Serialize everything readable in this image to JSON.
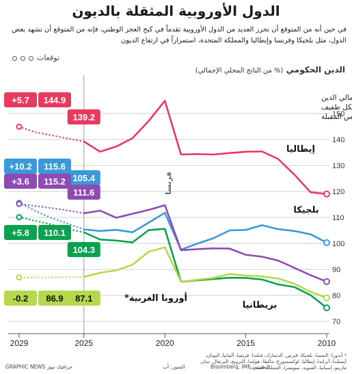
{
  "title": "الدول الأوروبية المثقلة بالديون",
  "intro": "في حين أنه من المتوقع أن تحرز العديد من الدول الأوروبية تقدماً في كبح العجز الوطني، فإنه من المتوقع أن تشهد بعض الدول، مثل بلجيكا وفرنسا وإيطاليا والمملكة المتحدة، استمراراً في ارتفاع الديون",
  "forecast_label": "توقعات",
  "chart_title": "الدين الحكومي",
  "chart_subtitle": "(% من الناتج المحلي الإجمالي)",
  "note": [
    "من المتوقع أن ينخفض إجمالي الدين",
    "في أوروبا الغربية بشكل طفيف",
    "خلال السنوات الخمس المقبلة"
  ],
  "footer": {
    "brand": "GRAPHIC NEWS جرافيك نيوز",
    "credit": "الصور: أب",
    "source": "المصدر: Bloomberg, IMF",
    "footnote": "* أندورا، النمسا، بلجيكا، قبرص، الدنمارك، فنلندا، فرنسا، ألمانيا، اليونان، أيسلندا، أيرلندا، إيطاليا، لوكسمبورغ، مالطا، هولندا، النرويج، البرتغال، سان مارينو، إسبانيا، السويد، سويسرا، المملكة المتحدة"
  },
  "chart_data": {
    "type": "line",
    "x_axis": {
      "min": 2010,
      "max": 2029,
      "reversed": true,
      "ticks": [
        "2010",
        "2015",
        "2020",
        "2025",
        "2029"
      ]
    },
    "y_axis": {
      "min": 70,
      "max": 160,
      "ticks": [
        "70",
        "80",
        "90",
        "100",
        "110",
        "120",
        "130",
        "140",
        "150"
      ]
    },
    "forecast_from": 2025,
    "series": [
      {
        "name": "إيطاليا",
        "color": "#e8395f",
        "label_style": "plain",
        "actual": [
          [
            2010,
            119
          ],
          [
            2011,
            119.7
          ],
          [
            2012,
            126.5
          ],
          [
            2013,
            132.5
          ],
          [
            2014,
            135.4
          ],
          [
            2015,
            135.3
          ],
          [
            2016,
            134.8
          ],
          [
            2017,
            134.2
          ],
          [
            2018,
            134.4
          ],
          [
            2019,
            134.2
          ],
          [
            2020,
            154.9
          ],
          [
            2021,
            147.1
          ],
          [
            2022,
            140.5
          ],
          [
            2023,
            137.3
          ],
          [
            2024,
            135.3
          ],
          [
            2025,
            139.2
          ]
        ],
        "forecast": [
          [
            2025,
            139.2
          ],
          [
            2026,
            140.4
          ],
          [
            2027,
            141.6
          ],
          [
            2028,
            142.8
          ],
          [
            2029,
            144.9
          ]
        ],
        "box_2025": "139.2",
        "box_2029": "144.9",
        "change_2029": "+5.7"
      },
      {
        "name": "بلجيكا",
        "color": "#3a9ad9",
        "label_style": "plain",
        "actual": [
          [
            2010,
            100.3
          ],
          [
            2011,
            103.5
          ],
          [
            2012,
            104.8
          ],
          [
            2013,
            105.5
          ],
          [
            2014,
            107
          ],
          [
            2015,
            105.2
          ],
          [
            2016,
            105
          ],
          [
            2017,
            102
          ],
          [
            2018,
            99.9
          ],
          [
            2019,
            97.6
          ],
          [
            2020,
            111.8
          ],
          [
            2021,
            108
          ],
          [
            2022,
            104.3
          ],
          [
            2023,
            105.2
          ],
          [
            2024,
            104.8
          ],
          [
            2025,
            105.4
          ]
        ],
        "forecast": [
          [
            2025,
            105.4
          ],
          [
            2026,
            107.6
          ],
          [
            2027,
            109.8
          ],
          [
            2028,
            112.5
          ],
          [
            2029,
            115.6
          ]
        ],
        "box_2025": "105.4",
        "box_2029": "115.6",
        "change_2029": "+10.2"
      },
      {
        "name": "فرنسا",
        "color": "#8e4bb4",
        "label_style": "plain",
        "actual": [
          [
            2010,
            85.3
          ],
          [
            2011,
            87.8
          ],
          [
            2012,
            90.6
          ],
          [
            2013,
            93.4
          ],
          [
            2014,
            94.9
          ],
          [
            2015,
            95.6
          ],
          [
            2016,
            98
          ],
          [
            2017,
            98.1
          ],
          [
            2018,
            97.8
          ],
          [
            2019,
            97.4
          ],
          [
            2020,
            114.7
          ],
          [
            2021,
            112.9
          ],
          [
            2022,
            111.4
          ],
          [
            2023,
            109.9
          ],
          [
            2024,
            112.6
          ],
          [
            2025,
            111.6
          ]
        ],
        "forecast": [
          [
            2025,
            111.6
          ],
          [
            2026,
            112.7
          ],
          [
            2027,
            113.6
          ],
          [
            2028,
            114.4
          ],
          [
            2029,
            115.2
          ]
        ],
        "box_2025": "111.6",
        "box_2029": "115.2",
        "change_2029": "+3.6"
      },
      {
        "name": "بريطانيا",
        "color": "#0aa14f",
        "label_style": "plain",
        "actual": [
          [
            2010,
            75.2
          ],
          [
            2011,
            80.1
          ],
          [
            2012,
            83.2
          ],
          [
            2013,
            84.2
          ],
          [
            2014,
            86.1
          ],
          [
            2015,
            86.7
          ],
          [
            2016,
            86.8
          ],
          [
            2017,
            86.3
          ],
          [
            2018,
            85.8
          ],
          [
            2019,
            85.2
          ],
          [
            2020,
            105.6
          ],
          [
            2021,
            105.1
          ],
          [
            2022,
            100.4
          ],
          [
            2023,
            101.1
          ],
          [
            2024,
            101.5
          ],
          [
            2025,
            104.3
          ]
        ],
        "forecast": [
          [
            2025,
            104.3
          ],
          [
            2026,
            105.5
          ],
          [
            2027,
            107.3
          ],
          [
            2028,
            108.7
          ],
          [
            2029,
            110.1
          ]
        ],
        "box_2025": "104.3",
        "box_2029": "110.1",
        "change_2029": "+5.8"
      },
      {
        "name": "أوروبا الغربية*",
        "color": "#b5d94b",
        "label_style": "plain",
        "actual": [
          [
            2010,
            79
          ],
          [
            2011,
            81.4
          ],
          [
            2012,
            84.5
          ],
          [
            2013,
            86.5
          ],
          [
            2014,
            87.3
          ],
          [
            2015,
            87.6
          ],
          [
            2016,
            88.2
          ],
          [
            2017,
            86.7
          ],
          [
            2018,
            86
          ],
          [
            2019,
            85.2
          ],
          [
            2020,
            98.5
          ],
          [
            2021,
            96.8
          ],
          [
            2022,
            91.8
          ],
          [
            2023,
            89.6
          ],
          [
            2024,
            88.7
          ],
          [
            2025,
            87.1
          ]
        ],
        "forecast": [
          [
            2025,
            87.1
          ],
          [
            2026,
            87
          ],
          [
            2027,
            86.9
          ],
          [
            2028,
            86.9
          ],
          [
            2029,
            86.9
          ]
        ],
        "box_2025": "87.1",
        "box_2029": "86.9",
        "change_2029": "-0.2"
      }
    ]
  }
}
